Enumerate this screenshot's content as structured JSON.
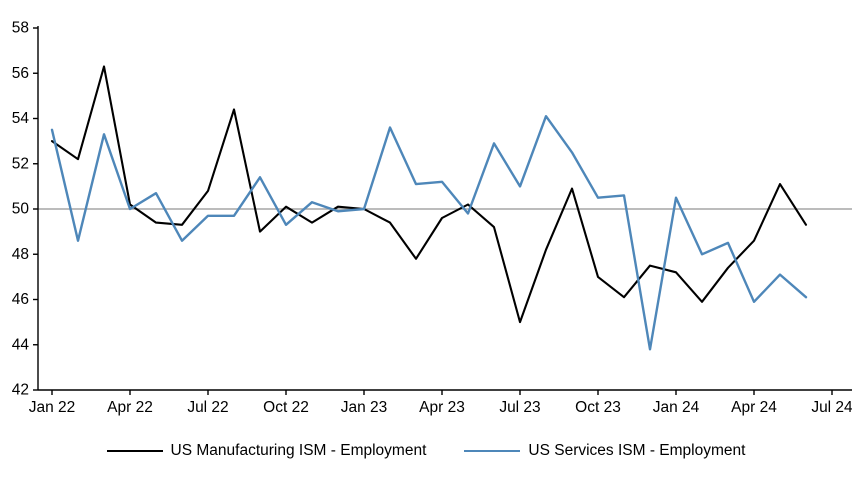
{
  "chart_data": {
    "type": "line",
    "title": "",
    "x_tick_labels": [
      "Jan 22",
      "Apr 22",
      "Jul 22",
      "Oct 22",
      "Jan 23",
      "Apr 23",
      "Jul 23",
      "Oct 23",
      "Jan 24",
      "Apr 24",
      "Jul 24"
    ],
    "x_months_per_tick": 3,
    "x_start_month": "Jan 22",
    "x_end_month": "Jun 24",
    "y_ticks": [
      58,
      56,
      54,
      52,
      50,
      48,
      46,
      44,
      42
    ],
    "ylim": [
      42,
      58
    ],
    "reference_line_y": 50,
    "grid": "none",
    "legend_position": "bottom",
    "axis_color": "#000000",
    "reference_line_color": "#A6A6A6",
    "background_color": "#FFFFFF",
    "series": [
      {
        "name": "US Manufacturing ISM - Employment",
        "color": "#000000",
        "values": [
          53.0,
          52.2,
          56.3,
          50.2,
          49.4,
          49.3,
          50.8,
          54.4,
          49.0,
          50.1,
          49.4,
          50.1,
          50.0,
          49.4,
          47.8,
          49.6,
          50.2,
          49.2,
          45.0,
          48.2,
          50.9,
          47.0,
          46.1,
          47.5,
          47.2,
          45.9,
          47.4,
          48.6,
          51.1,
          49.3
        ]
      },
      {
        "name": "US Services ISM - Employment",
        "color": "#4E87B9",
        "values": [
          53.5,
          48.6,
          53.3,
          50.0,
          50.7,
          48.6,
          49.7,
          49.7,
          51.4,
          49.3,
          50.3,
          49.9,
          50.0,
          53.6,
          51.1,
          51.2,
          49.8,
          52.9,
          51.0,
          54.1,
          52.5,
          50.5,
          50.6,
          43.8,
          50.5,
          48.0,
          48.5,
          45.9,
          47.1,
          46.1
        ]
      }
    ]
  },
  "legend": {
    "manufacturing_label": "US Manufacturing ISM - Employment",
    "services_label": "US Services ISM - Employment"
  }
}
